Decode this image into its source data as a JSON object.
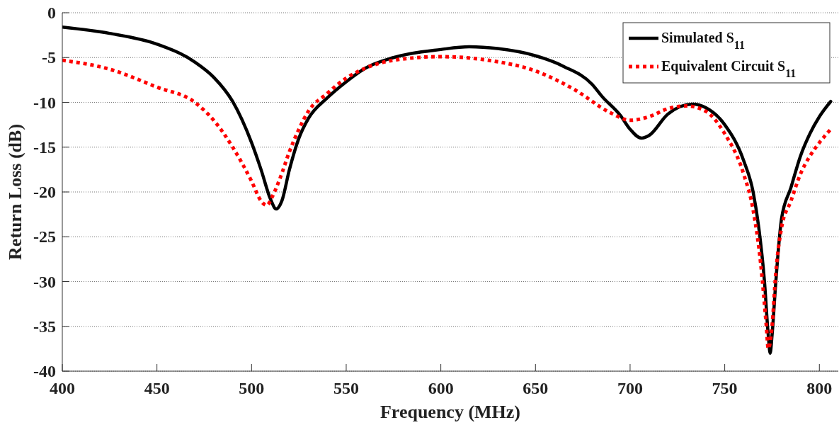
{
  "chart_data": {
    "type": "line",
    "xlabel": "Frequency (MHz)",
    "ylabel": "Return Loss (dB)",
    "xlim": [
      400,
      810
    ],
    "xticks": [
      400,
      450,
      500,
      550,
      600,
      650,
      700,
      750,
      800
    ],
    "ylim": [
      -40,
      0
    ],
    "yticks": [
      -40,
      -35,
      -30,
      -25,
      -20,
      -15,
      -10,
      -5,
      0
    ],
    "grid": "y",
    "legend": "top right",
    "series": [
      {
        "name": "Simulated S$_{11}$",
        "color": "#000000",
        "line_style": "solid",
        "x": [
          400,
          425,
          450,
          470,
          480,
          490,
          500,
          505,
          510,
          513,
          516,
          520,
          525,
          530,
          540,
          550,
          560,
          575,
          600,
          615,
          630,
          650,
          665,
          680,
          685,
          695,
          700,
          706,
          710,
          720,
          733,
          740,
          750,
          760,
          765,
          768,
          771,
          773,
          774,
          775,
          777,
          780,
          785,
          790,
          795,
          800,
          806
        ],
        "values": [
          -1.6,
          -2.3,
          -3.5,
          -5.5,
          -7.2,
          -9.9,
          -14.5,
          -17.5,
          -20.8,
          -21.9,
          -21,
          -17.5,
          -14,
          -11.8,
          -9.5,
          -7.7,
          -6.2,
          -5,
          -4.1,
          -3.8,
          -4,
          -4.8,
          -6,
          -8,
          -9.3,
          -11.5,
          -13,
          -14,
          -13.7,
          -11.3,
          -10.2,
          -10.6,
          -12.5,
          -16.5,
          -20,
          -24,
          -30,
          -36,
          -38,
          -36,
          -30,
          -23,
          -19.5,
          -16,
          -13.5,
          -11.6,
          -9.9
        ]
      },
      {
        "name": "Equivalent Circuit S$_{11}$",
        "color": "#ff0000",
        "line_style": "dotted",
        "x": [
          400,
          425,
          450,
          470,
          480,
          490,
          500,
          505,
          508,
          511,
          515,
          520,
          525,
          530,
          540,
          550,
          560,
          575,
          600,
          625,
          650,
          670,
          690,
          700,
          710,
          720,
          730,
          740,
          750,
          760,
          765,
          769,
          772,
          773,
          775,
          777,
          780,
          785,
          790,
          795,
          800,
          806
        ],
        "values": [
          -5.3,
          -6.3,
          -8.3,
          -10,
          -12,
          -15,
          -18.8,
          -21,
          -21.5,
          -20.5,
          -18.5,
          -15.5,
          -13,
          -11,
          -9,
          -7.3,
          -6.2,
          -5.3,
          -4.9,
          -5.3,
          -6.5,
          -8.5,
          -11.2,
          -12,
          -11.6,
          -10.7,
          -10.4,
          -11,
          -13.5,
          -18,
          -22,
          -28,
          -35,
          -37.5,
          -35,
          -29,
          -24,
          -21,
          -18,
          -16,
          -14.5,
          -13
        ]
      }
    ]
  }
}
